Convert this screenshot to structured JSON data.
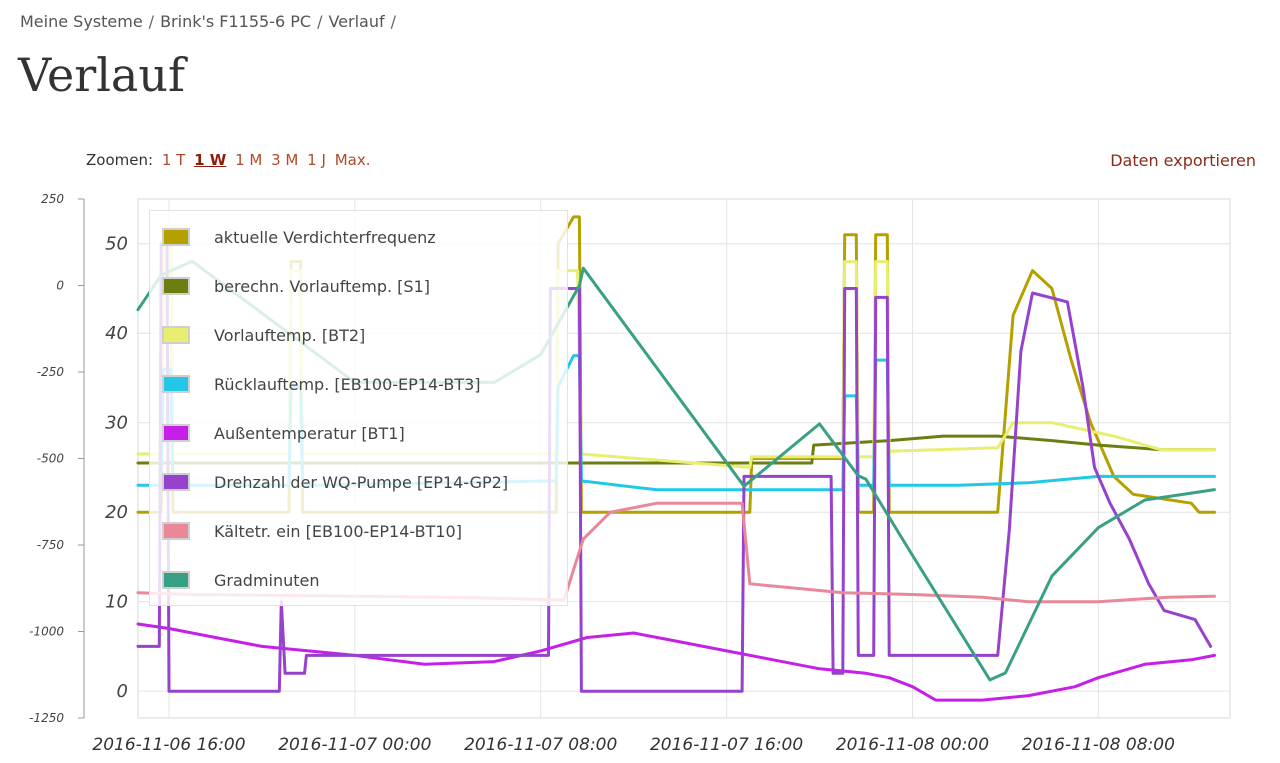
{
  "breadcrumb": {
    "items": [
      "Meine Systeme",
      "Brink's F1155-6 PC",
      "Verlauf"
    ],
    "separator": "/"
  },
  "page_title": "Verlauf",
  "zoom": {
    "label": "Zoomen:",
    "options": [
      "1 T",
      "1 W",
      "1 M",
      "3 M",
      "1 J",
      "Max."
    ],
    "active": "1 W"
  },
  "export_label": "Daten exportieren",
  "chart_data": {
    "type": "line",
    "x_ticks": [
      "2016-11-06 16:00",
      "2016-11-07 00:00",
      "2016-11-07 08:00",
      "2016-11-07 16:00",
      "2016-11-08 00:00",
      "2016-11-08 08:00"
    ],
    "xlim": [
      "2016-11-06 14:40",
      "2016-11-08 13:40"
    ],
    "y_left": {
      "ticks": [
        250,
        0,
        -250,
        -500,
        -750,
        -1000,
        -1250
      ],
      "ylim": [
        -1250,
        250
      ]
    },
    "y_right": {
      "ticks": [
        50,
        40,
        30,
        20,
        10,
        0
      ],
      "ylim": [
        -3,
        55
      ]
    },
    "grid": true,
    "legend_position": "top-left",
    "series": [
      {
        "name": "aktuelle Verdichterfrequenz",
        "color": "#b5a000",
        "axis": "right",
        "points": [
          [
            "2016-11-06 14:40",
            20
          ],
          [
            "2016-11-06 15:40",
            20
          ],
          [
            "2016-11-06 15:45",
            51
          ],
          [
            "2016-11-06 16:05",
            51
          ],
          [
            "2016-11-06 16:10",
            20
          ],
          [
            "2016-11-06 21:10",
            20
          ],
          [
            "2016-11-06 21:15",
            48
          ],
          [
            "2016-11-06 21:40",
            48
          ],
          [
            "2016-11-06 21:45",
            20
          ],
          [
            "2016-11-07 08:40",
            20
          ],
          [
            "2016-11-07 08:45",
            50
          ],
          [
            "2016-11-07 09:25",
            53
          ],
          [
            "2016-11-07 09:40",
            53
          ],
          [
            "2016-11-07 09:45",
            20
          ],
          [
            "2016-11-07 17:00",
            20
          ],
          [
            "2016-11-07 17:05",
            26
          ],
          [
            "2016-11-07 21:00",
            26
          ],
          [
            "2016-11-07 21:05",
            51
          ],
          [
            "2016-11-07 21:35",
            51
          ],
          [
            "2016-11-07 21:40",
            20
          ],
          [
            "2016-11-07 22:20",
            20
          ],
          [
            "2016-11-07 22:25",
            51
          ],
          [
            "2016-11-07 22:55",
            51
          ],
          [
            "2016-11-07 23:00",
            20
          ],
          [
            "2016-11-08 03:40",
            20
          ],
          [
            "2016-11-08 04:20",
            42
          ],
          [
            "2016-11-08 05:10",
            47
          ],
          [
            "2016-11-08 06:00",
            45
          ],
          [
            "2016-11-08 06:50",
            37
          ],
          [
            "2016-11-08 07:40",
            30
          ],
          [
            "2016-11-08 08:40",
            24
          ],
          [
            "2016-11-08 09:30",
            22
          ],
          [
            "2016-11-08 12:00",
            21
          ],
          [
            "2016-11-08 12:20",
            20
          ],
          [
            "2016-11-08 13:00",
            20
          ]
        ]
      },
      {
        "name": "berechn. Vorlauftemp. [S1]",
        "color": "#6e7d10",
        "axis": "right",
        "points": [
          [
            "2016-11-06 14:40",
            25.5
          ],
          [
            "2016-11-07 17:00",
            25.5
          ],
          [
            "2016-11-07 19:40",
            25.5
          ],
          [
            "2016-11-07 19:45",
            27.5
          ],
          [
            "2016-11-07 23:00",
            28
          ],
          [
            "2016-11-08 01:20",
            28.5
          ],
          [
            "2016-11-08 03:40",
            28.5
          ],
          [
            "2016-11-08 06:00",
            28
          ],
          [
            "2016-11-08 08:00",
            27.5
          ],
          [
            "2016-11-08 10:40",
            27
          ],
          [
            "2016-11-08 13:00",
            27
          ]
        ]
      },
      {
        "name": "Vorlauftemp. [BT2]",
        "color": "#e8ee70",
        "axis": "right",
        "points": [
          [
            "2016-11-06 14:40",
            26.5
          ],
          [
            "2016-11-06 15:40",
            26.5
          ],
          [
            "2016-11-06 15:45",
            51
          ],
          [
            "2016-11-06 16:05",
            51
          ],
          [
            "2016-11-06 16:10",
            26.5
          ],
          [
            "2016-11-06 21:10",
            26.5
          ],
          [
            "2016-11-06 21:15",
            47
          ],
          [
            "2016-11-06 21:40",
            47
          ],
          [
            "2016-11-06 21:45",
            26.5
          ],
          [
            "2016-11-07 08:40",
            26.5
          ],
          [
            "2016-11-07 08:45",
            47
          ],
          [
            "2016-11-07 09:35",
            47
          ],
          [
            "2016-11-07 09:45",
            26.5
          ],
          [
            "2016-11-07 17:00",
            25
          ],
          [
            "2016-11-07 17:05",
            26.2
          ],
          [
            "2016-11-07 21:00",
            26.2
          ],
          [
            "2016-11-07 21:05",
            48
          ],
          [
            "2016-11-07 21:35",
            48
          ],
          [
            "2016-11-07 21:40",
            26.2
          ],
          [
            "2016-11-07 22:20",
            26.2
          ],
          [
            "2016-11-07 22:25",
            48
          ],
          [
            "2016-11-07 22:55",
            48
          ],
          [
            "2016-11-07 23:00",
            26.8
          ],
          [
            "2016-11-08 03:40",
            27.2
          ],
          [
            "2016-11-08 04:20",
            30
          ],
          [
            "2016-11-08 06:00",
            30
          ],
          [
            "2016-11-08 08:40",
            28.5
          ],
          [
            "2016-11-08 10:40",
            27
          ],
          [
            "2016-11-08 13:00",
            27
          ]
        ]
      },
      {
        "name": "Rücklauftemp. [EB100-EP14-BT3]",
        "color": "#22c8e6",
        "axis": "right",
        "points": [
          [
            "2016-11-06 14:40",
            23
          ],
          [
            "2016-11-06 15:40",
            23
          ],
          [
            "2016-11-06 15:45",
            36
          ],
          [
            "2016-11-06 16:05",
            36
          ],
          [
            "2016-11-06 16:10",
            23
          ],
          [
            "2016-11-06 21:10",
            23
          ],
          [
            "2016-11-06 21:15",
            34
          ],
          [
            "2016-11-06 21:40",
            34
          ],
          [
            "2016-11-06 21:45",
            23
          ],
          [
            "2016-11-07 08:40",
            23.5
          ],
          [
            "2016-11-07 08:45",
            34
          ],
          [
            "2016-11-07 09:25",
            37.5
          ],
          [
            "2016-11-07 09:40",
            37.5
          ],
          [
            "2016-11-07 09:45",
            23.5
          ],
          [
            "2016-11-07 13:00",
            22.5
          ],
          [
            "2016-11-07 16:00",
            22.5
          ],
          [
            "2016-11-07 17:00",
            22.5
          ],
          [
            "2016-11-07 21:00",
            22.5
          ],
          [
            "2016-11-07 21:05",
            33
          ],
          [
            "2016-11-07 21:35",
            33
          ],
          [
            "2016-11-07 21:40",
            23
          ],
          [
            "2016-11-07 22:20",
            23
          ],
          [
            "2016-11-07 22:25",
            37
          ],
          [
            "2016-11-07 22:55",
            37
          ],
          [
            "2016-11-07 23:00",
            23
          ],
          [
            "2016-11-08 02:00",
            23
          ],
          [
            "2016-11-08 05:00",
            23.3
          ],
          [
            "2016-11-08 08:00",
            24
          ],
          [
            "2016-11-08 13:00",
            24
          ]
        ]
      },
      {
        "name": "Außentemperatur [BT1]",
        "color": "#c61fe8",
        "axis": "right",
        "points": [
          [
            "2016-11-06 14:40",
            7.5
          ],
          [
            "2016-11-06 16:00",
            7
          ],
          [
            "2016-11-06 18:00",
            6
          ],
          [
            "2016-11-06 20:00",
            5
          ],
          [
            "2016-11-06 22:00",
            4.5
          ],
          [
            "2016-11-07 00:00",
            4
          ],
          [
            "2016-11-07 03:00",
            3
          ],
          [
            "2016-11-07 06:00",
            3.3
          ],
          [
            "2016-11-07 08:00",
            4.5
          ],
          [
            "2016-11-07 10:00",
            6
          ],
          [
            "2016-11-07 12:00",
            6.5
          ],
          [
            "2016-11-07 14:00",
            5.5
          ],
          [
            "2016-11-07 16:00",
            4.5
          ],
          [
            "2016-11-07 18:00",
            3.5
          ],
          [
            "2016-11-07 20:00",
            2.5
          ],
          [
            "2016-11-07 22:00",
            2
          ],
          [
            "2016-11-07 23:00",
            1.5
          ],
          [
            "2016-11-08 00:00",
            0.5
          ],
          [
            "2016-11-08 01:00",
            -1
          ],
          [
            "2016-11-08 03:00",
            -1
          ],
          [
            "2016-11-08 05:00",
            -0.5
          ],
          [
            "2016-11-08 07:00",
            0.5
          ],
          [
            "2016-11-08 08:00",
            1.5
          ],
          [
            "2016-11-08 10:00",
            3
          ],
          [
            "2016-11-08 12:00",
            3.5
          ],
          [
            "2016-11-08 13:00",
            4
          ]
        ]
      },
      {
        "name": "Drehzahl der WQ-Pumpe [EP14-GP2]",
        "color": "#9642cc",
        "axis": "right",
        "points": [
          [
            "2016-11-06 14:40",
            5
          ],
          [
            "2016-11-06 15:35",
            5
          ],
          [
            "2016-11-06 15:40",
            50
          ],
          [
            "2016-11-06 15:55",
            50
          ],
          [
            "2016-11-06 16:00",
            0
          ],
          [
            "2016-11-06 20:45",
            0
          ],
          [
            "2016-11-06 20:50",
            10
          ],
          [
            "2016-11-06 21:00",
            2
          ],
          [
            "2016-11-06 21:50",
            2
          ],
          [
            "2016-11-06 21:55",
            4
          ],
          [
            "2016-11-06 22:00",
            4
          ],
          [
            "2016-11-07 08:20",
            4
          ],
          [
            "2016-11-07 08:25",
            45
          ],
          [
            "2016-11-07 09:40",
            45
          ],
          [
            "2016-11-07 09:45",
            0
          ],
          [
            "2016-11-07 16:40",
            0
          ],
          [
            "2016-11-07 16:45",
            24
          ],
          [
            "2016-11-07 20:30",
            24
          ],
          [
            "2016-11-07 20:35",
            2
          ],
          [
            "2016-11-07 21:00",
            2
          ],
          [
            "2016-11-07 21:05",
            45
          ],
          [
            "2016-11-07 21:35",
            45
          ],
          [
            "2016-11-07 21:40",
            4
          ],
          [
            "2016-11-07 22:20",
            4
          ],
          [
            "2016-11-07 22:25",
            44
          ],
          [
            "2016-11-07 22:55",
            44
          ],
          [
            "2016-11-07 23:00",
            4
          ],
          [
            "2016-11-08 03:40",
            4
          ],
          [
            "2016-11-08 04:10",
            18
          ],
          [
            "2016-11-08 04:40",
            38
          ],
          [
            "2016-11-08 05:10",
            44.5
          ],
          [
            "2016-11-08 06:40",
            43.5
          ],
          [
            "2016-11-08 07:20",
            34
          ],
          [
            "2016-11-08 07:50",
            25
          ],
          [
            "2016-11-08 08:30",
            21
          ],
          [
            "2016-11-08 09:20",
            17
          ],
          [
            "2016-11-08 10:10",
            12
          ],
          [
            "2016-11-08 10:50",
            9
          ],
          [
            "2016-11-08 12:10",
            8
          ],
          [
            "2016-11-08 12:50",
            5
          ]
        ]
      },
      {
        "name": "Kältetr. ein [EB100-EP14-BT10]",
        "color": "#e88898",
        "axis": "right",
        "points": [
          [
            "2016-11-06 14:40",
            11
          ],
          [
            "2016-11-06 17:00",
            10.8
          ],
          [
            "2016-11-07 04:00",
            10.5
          ],
          [
            "2016-11-07 09:00",
            10.2
          ],
          [
            "2016-11-07 09:50",
            17
          ],
          [
            "2016-11-07 11:00",
            20
          ],
          [
            "2016-11-07 13:00",
            21
          ],
          [
            "2016-11-07 16:40",
            21
          ],
          [
            "2016-11-07 17:00",
            12
          ],
          [
            "2016-11-07 19:00",
            11.5
          ],
          [
            "2016-11-07 21:00",
            11
          ],
          [
            "2016-11-08 00:00",
            10.8
          ],
          [
            "2016-11-08 03:00",
            10.5
          ],
          [
            "2016-11-08 05:00",
            10
          ],
          [
            "2016-11-08 08:00",
            10
          ],
          [
            "2016-11-08 11:00",
            10.5
          ],
          [
            "2016-11-08 13:00",
            10.6
          ]
        ]
      },
      {
        "name": "Gradminuten",
        "color": "#3aa085",
        "axis": "left",
        "points": [
          [
            "2016-11-06 14:40",
            -70
          ],
          [
            "2016-11-06 15:40",
            30
          ],
          [
            "2016-11-06 17:00",
            70
          ],
          [
            "2016-11-07 00:00",
            -280
          ],
          [
            "2016-11-07 04:00",
            -280
          ],
          [
            "2016-11-07 06:00",
            -280
          ],
          [
            "2016-11-07 08:00",
            -200
          ],
          [
            "2016-11-07 09:40",
            0
          ],
          [
            "2016-11-07 09:50",
            50
          ],
          [
            "2016-11-07 16:45",
            -580
          ],
          [
            "2016-11-07 20:00",
            -400
          ],
          [
            "2016-11-07 21:40",
            -550
          ],
          [
            "2016-11-07 22:00",
            -560
          ],
          [
            "2016-11-08 00:00",
            -780
          ],
          [
            "2016-11-08 03:20",
            -1140
          ],
          [
            "2016-11-08 04:00",
            -1120
          ],
          [
            "2016-11-08 06:00",
            -840
          ],
          [
            "2016-11-08 08:00",
            -700
          ],
          [
            "2016-11-08 10:00",
            -620
          ],
          [
            "2016-11-08 12:00",
            -600
          ],
          [
            "2016-11-08 13:00",
            -590
          ]
        ]
      }
    ]
  }
}
